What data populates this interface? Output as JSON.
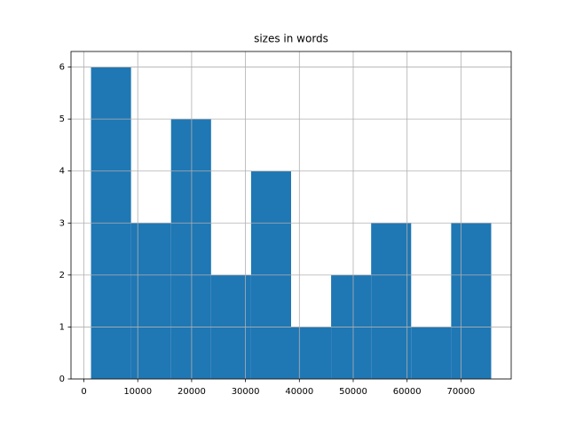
{
  "chart_data": {
    "type": "histogram",
    "title": "sizes in words",
    "bins": [
      1321,
      8750,
      16180,
      23609,
      31038,
      38468,
      45897,
      53327,
      60756,
      68186,
      75615
    ],
    "values": [
      6,
      3,
      5,
      2,
      4,
      1,
      2,
      3,
      1,
      3
    ],
    "color": "#1f77b4",
    "xlim": [
      -2394,
      79330
    ],
    "xticks": [
      0,
      10000,
      20000,
      30000,
      40000,
      50000,
      60000,
      70000
    ],
    "ylim": [
      0,
      6.3
    ],
    "yticks": [
      0,
      1,
      2,
      3,
      4,
      5,
      6
    ],
    "grid": true
  }
}
